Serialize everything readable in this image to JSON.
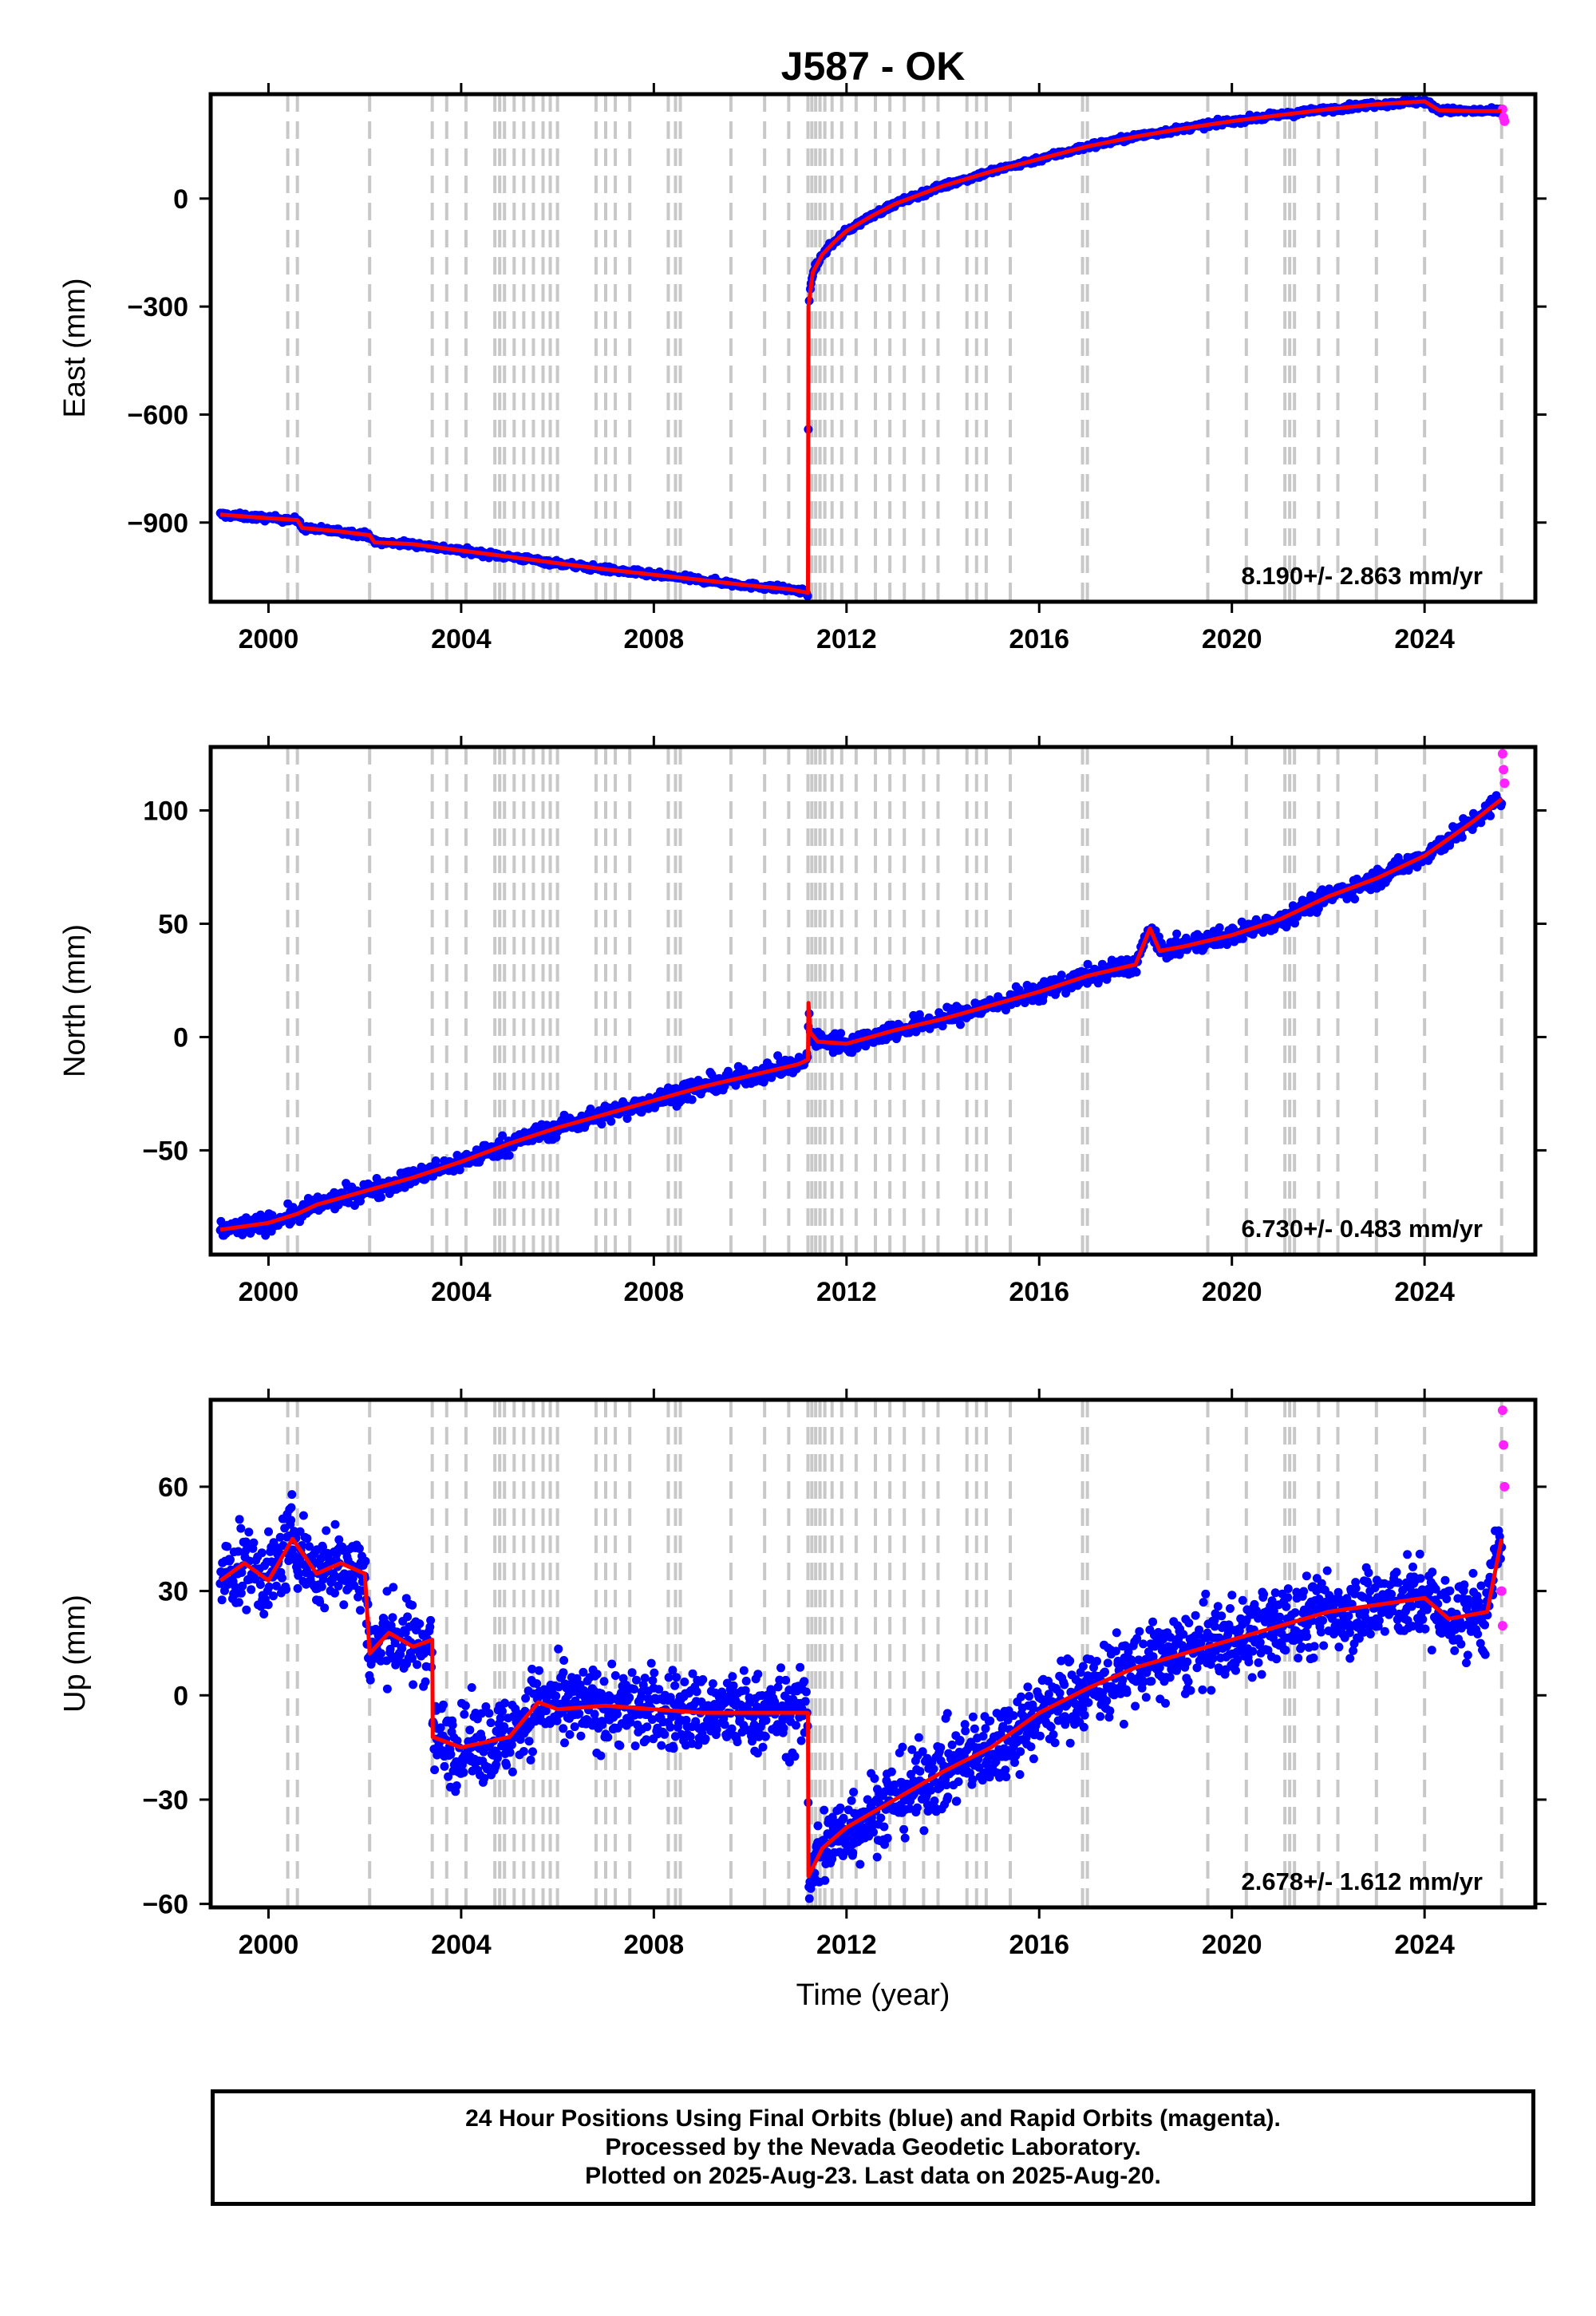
{
  "colors": {
    "final_orbits": "#0000ff",
    "rapid_orbits": "#ff22ff",
    "model": "#ff0000",
    "event_lines": "#c8c8c8",
    "axis": "#000000"
  },
  "chart_data": [
    {
      "type": "scatter",
      "title": "J587 - OK",
      "xlabel": "",
      "ylabel": "East (mm)",
      "xlim": [
        1998.8,
        2026.3
      ],
      "ylim": [
        -1120,
        290
      ],
      "xticks": [
        2000,
        2004,
        2008,
        2012,
        2016,
        2020,
        2024
      ],
      "yticks": [
        -900,
        -600,
        -300,
        0
      ],
      "annotation": "8.190+/- 2.863 mm/yr",
      "events": [
        2000.4,
        2000.6,
        2002.1,
        2003.4,
        2003.7,
        2004.1,
        2004.7,
        2004.8,
        2004.9,
        2005.1,
        2005.3,
        2005.5,
        2005.7,
        2005.85,
        2006.0,
        2006.8,
        2007.0,
        2007.2,
        2007.5,
        2008.3,
        2008.45,
        2008.55,
        2009.6,
        2010.3,
        2010.8,
        2011.2,
        2011.28,
        2011.36,
        2011.45,
        2011.55,
        2011.7,
        2011.9,
        2012.2,
        2012.6,
        2012.9,
        2013.2,
        2013.6,
        2013.9,
        2014.5,
        2014.7,
        2014.9,
        2015.4,
        2016.9,
        2017.0,
        2019.5,
        2020.3,
        2021.1,
        2021.2,
        2021.3,
        2021.8,
        2022.2,
        2023.0,
        2024.0,
        2025.6
      ],
      "series": [
        {
          "points": [
            [
              1999.0,
              -878
            ],
            [
              2000.0,
              -888
            ],
            [
              2000.6,
              -893
            ],
            [
              2000.7,
              -915
            ],
            [
              2001.5,
              -925
            ],
            [
              2002.1,
              -935
            ],
            [
              2002.2,
              -955
            ],
            [
              2003.0,
              -960
            ],
            [
              2004.0,
              -978
            ],
            [
              2005.0,
              -995
            ],
            [
              2006.0,
              -1013
            ],
            [
              2007.0,
              -1030
            ],
            [
              2008.0,
              -1045
            ],
            [
              2009.0,
              -1060
            ],
            [
              2010.0,
              -1075
            ],
            [
              2010.8,
              -1085
            ],
            [
              2011.2,
              -1095
            ],
            [
              2011.21,
              -300
            ],
            [
              2011.3,
              -205
            ],
            [
              2011.5,
              -155
            ],
            [
              2011.75,
              -120
            ],
            [
              2012.0,
              -90
            ],
            [
              2012.5,
              -50
            ],
            [
              2013.0,
              -15
            ],
            [
              2014.0,
              35
            ],
            [
              2015.0,
              75
            ],
            [
              2016.0,
              110
            ],
            [
              2017.0,
              145
            ],
            [
              2018.0,
              172
            ],
            [
              2019.0,
              195
            ],
            [
              2020.0,
              215
            ],
            [
              2021.0,
              232
            ],
            [
              2022.0,
              248
            ],
            [
              2023.0,
              262
            ],
            [
              2024.0,
              270
            ],
            [
              2024.3,
              245
            ],
            [
              2025.0,
              243
            ],
            [
              2025.6,
              243
            ]
          ]
        },
        {
          "points": [
            [
              2025.62,
              248
            ],
            [
              2025.64,
              225
            ],
            [
              2025.66,
              215
            ]
          ]
        }
      ]
    },
    {
      "type": "scatter",
      "title": "",
      "xlabel": "",
      "ylabel": "North (mm)",
      "xlim": [
        1998.8,
        2026.3
      ],
      "ylim": [
        -96,
        128
      ],
      "xticks": [
        2000,
        2004,
        2008,
        2012,
        2016,
        2020,
        2024
      ],
      "yticks": [
        -50,
        0,
        50,
        100
      ],
      "annotation": "6.730+/- 0.483 mm/yr",
      "events": [
        2000.4,
        2000.6,
        2002.1,
        2003.4,
        2003.7,
        2004.1,
        2004.7,
        2004.8,
        2004.9,
        2005.1,
        2005.3,
        2005.5,
        2005.7,
        2005.85,
        2006.0,
        2006.8,
        2007.0,
        2007.2,
        2007.5,
        2008.3,
        2008.45,
        2008.55,
        2009.6,
        2010.3,
        2010.8,
        2011.2,
        2011.28,
        2011.36,
        2011.45,
        2011.55,
        2011.7,
        2011.9,
        2012.2,
        2012.6,
        2012.9,
        2013.2,
        2013.6,
        2013.9,
        2014.5,
        2014.7,
        2014.9,
        2015.4,
        2016.9,
        2017.0,
        2019.5,
        2020.3,
        2021.1,
        2021.2,
        2021.3,
        2021.8,
        2022.2,
        2023.0,
        2024.0,
        2025.6
      ],
      "series": [
        {
          "points": [
            [
              1999.0,
              -85
            ],
            [
              2000.0,
              -82
            ],
            [
              2000.6,
              -78
            ],
            [
              2001.0,
              -74
            ],
            [
              2002.0,
              -68
            ],
            [
              2003.0,
              -62
            ],
            [
              2004.0,
              -55
            ],
            [
              2005.0,
              -47
            ],
            [
              2006.0,
              -40
            ],
            [
              2007.0,
              -34
            ],
            [
              2008.0,
              -28
            ],
            [
              2009.0,
              -22
            ],
            [
              2010.0,
              -17
            ],
            [
              2011.0,
              -12
            ],
            [
              2011.2,
              -10
            ],
            [
              2011.21,
              15
            ],
            [
              2011.25,
              2
            ],
            [
              2011.4,
              -2
            ],
            [
              2012.0,
              -3
            ],
            [
              2013.0,
              3
            ],
            [
              2014.0,
              8
            ],
            [
              2015.0,
              14
            ],
            [
              2016.0,
              20
            ],
            [
              2017.0,
              27
            ],
            [
              2018.0,
              32
            ],
            [
              2018.3,
              48
            ],
            [
              2018.5,
              38
            ],
            [
              2019.0,
              40
            ],
            [
              2020.0,
              45
            ],
            [
              2021.0,
              52
            ],
            [
              2022.0,
              62
            ],
            [
              2023.0,
              70
            ],
            [
              2024.0,
              80
            ],
            [
              2025.0,
              95
            ],
            [
              2025.6,
              105
            ]
          ]
        },
        {
          "points": [
            [
              2025.62,
              125
            ],
            [
              2025.64,
              118
            ],
            [
              2025.66,
              112
            ]
          ]
        }
      ]
    },
    {
      "type": "scatter",
      "title": "",
      "xlabel": "Time (year)",
      "ylabel": "Up (mm)",
      "xlim": [
        1998.8,
        2026.3
      ],
      "ylim": [
        -61,
        85
      ],
      "xticks": [
        2000,
        2004,
        2008,
        2012,
        2016,
        2020,
        2024
      ],
      "yticks": [
        -60,
        -30,
        0,
        30,
        60
      ],
      "annotation": "2.678+/- 1.612 mm/yr",
      "events": [
        2000.4,
        2000.6,
        2002.1,
        2003.4,
        2003.7,
        2004.1,
        2004.7,
        2004.8,
        2004.9,
        2005.1,
        2005.3,
        2005.5,
        2005.7,
        2005.85,
        2006.0,
        2006.8,
        2007.0,
        2007.2,
        2007.5,
        2008.3,
        2008.45,
        2008.55,
        2009.6,
        2010.3,
        2010.8,
        2011.2,
        2011.28,
        2011.36,
        2011.45,
        2011.55,
        2011.7,
        2011.9,
        2012.2,
        2012.6,
        2012.9,
        2013.2,
        2013.6,
        2013.9,
        2014.5,
        2014.7,
        2014.9,
        2015.4,
        2016.9,
        2017.0,
        2019.5,
        2020.3,
        2021.1,
        2021.2,
        2021.3,
        2021.8,
        2022.2,
        2023.0,
        2024.0,
        2025.6
      ],
      "series": [
        {
          "points": [
            [
              1999.0,
              33
            ],
            [
              1999.5,
              38
            ],
            [
              2000.0,
              33
            ],
            [
              2000.5,
              45
            ],
            [
              2001.0,
              35
            ],
            [
              2001.5,
              38
            ],
            [
              2002.0,
              35
            ],
            [
              2002.1,
              12
            ],
            [
              2002.5,
              18
            ],
            [
              2003.0,
              14
            ],
            [
              2003.4,
              16
            ],
            [
              2003.41,
              -12
            ],
            [
              2004.0,
              -15
            ],
            [
              2005.0,
              -12
            ],
            [
              2005.6,
              -2
            ],
            [
              2006.0,
              -4
            ],
            [
              2007.0,
              -3
            ],
            [
              2008.0,
              -4
            ],
            [
              2009.0,
              -5
            ],
            [
              2010.0,
              -5
            ],
            [
              2011.0,
              -5
            ],
            [
              2011.2,
              -5
            ],
            [
              2011.21,
              -52
            ],
            [
              2011.5,
              -44
            ],
            [
              2012.0,
              -38
            ],
            [
              2013.0,
              -30
            ],
            [
              2014.0,
              -22
            ],
            [
              2015.0,
              -15
            ],
            [
              2016.0,
              -5
            ],
            [
              2017.0,
              2
            ],
            [
              2018.0,
              8
            ],
            [
              2019.0,
              12
            ],
            [
              2020.0,
              16
            ],
            [
              2021.0,
              20
            ],
            [
              2022.0,
              24
            ],
            [
              2023.0,
              26
            ],
            [
              2024.0,
              28
            ],
            [
              2024.5,
              22
            ],
            [
              2025.3,
              24
            ],
            [
              2025.6,
              45
            ]
          ]
        },
        {
          "points": [
            [
              2025.62,
              82
            ],
            [
              2025.64,
              72
            ],
            [
              2025.66,
              60
            ],
            [
              2025.6,
              30
            ],
            [
              2025.62,
              20
            ]
          ]
        }
      ]
    }
  ],
  "footer": {
    "line1": "24 Hour Positions Using Final Orbits (blue) and Rapid Orbits (magenta).",
    "line2": "Processed by the Nevada Geodetic Laboratory.",
    "line3": "Plotted on 2025-Aug-23. Last data on 2025-Aug-20."
  }
}
